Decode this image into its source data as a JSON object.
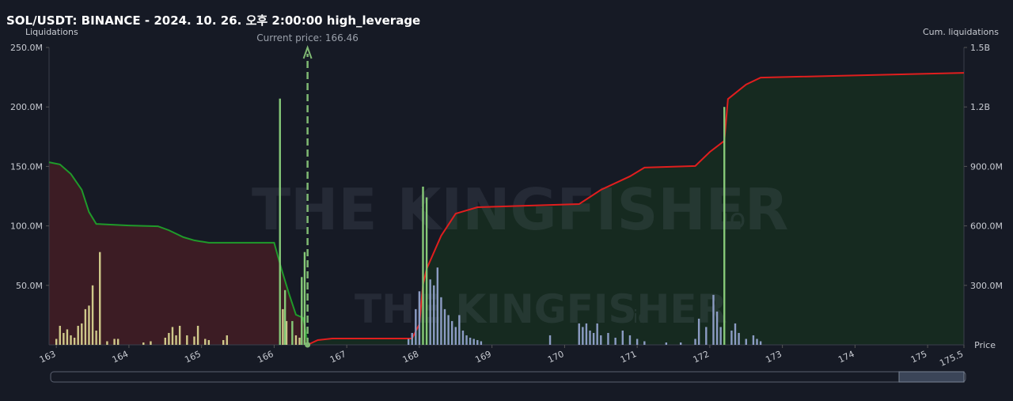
{
  "chart_data": {
    "type": "bar",
    "title": "SOL/USDT: BINANCE - 2024. 10. 26. 오후 2:00:00 high_leverage",
    "y_label": "Liquidations",
    "y2_label": "Cum. liquidations",
    "x_label": "Price",
    "watermark": "THE KINGFISHER",
    "watermark_suffix": "io",
    "current_price": {
      "value": 166.46,
      "label": "Current price: 166.46"
    },
    "xlim": [
      162.9,
      175.5
    ],
    "xticks": [
      163,
      164,
      165,
      166,
      167,
      168,
      169,
      170,
      171,
      172,
      173,
      174,
      175,
      175.5
    ],
    "ylim": [
      0,
      250000000
    ],
    "yticks": [
      {
        "value": 50000000,
        "label": "50.0M"
      },
      {
        "value": 100000000,
        "label": "100.0M"
      },
      {
        "value": 150000000,
        "label": "150.0M"
      },
      {
        "value": 200000000,
        "label": "200.0M"
      },
      {
        "value": 250000000,
        "label": "250.0M"
      }
    ],
    "y2lim": [
      0,
      1500000000
    ],
    "y2ticks": [
      {
        "value": 300000000,
        "label": "300.0M"
      },
      {
        "value": 600000000,
        "label": "600.0M"
      },
      {
        "value": 900000000,
        "label": "900.0M"
      },
      {
        "value": 1200000000,
        "label": "1.2B"
      },
      {
        "value": 1500000000,
        "label": "1.5B"
      }
    ],
    "series": [
      {
        "type": "bar",
        "color": "#cfc98a",
        "x": [
          163.0,
          163.05,
          163.1,
          163.15,
          163.2,
          163.25,
          163.3,
          163.35,
          163.4,
          163.45,
          163.5,
          163.55,
          163.6,
          163.7,
          163.8,
          163.85,
          164.2,
          164.3,
          164.5,
          164.55,
          164.6,
          164.65,
          164.7,
          164.8,
          164.9,
          164.95,
          165.05,
          165.1,
          165.3,
          165.35,
          166.12,
          166.17,
          166.3,
          166.35,
          166.42
        ],
        "values": [
          5000000,
          16000000,
          10000000,
          13000000,
          8000000,
          6000000,
          16000000,
          18000000,
          30000000,
          33000000,
          50000000,
          12000000,
          78000000,
          3000000,
          5000000,
          5000000,
          2000000,
          3000000,
          6000000,
          10000000,
          15000000,
          8000000,
          16000000,
          8000000,
          7000000,
          16000000,
          5000000,
          4000000,
          4000000,
          8000000,
          30000000,
          20000000,
          8000000,
          6000000,
          4000000
        ]
      },
      {
        "type": "bar",
        "color": "#8c9cc4",
        "x": [
          167.85,
          167.9,
          167.95,
          168.0,
          168.15,
          168.2,
          168.25,
          168.3,
          168.35,
          168.4,
          168.45,
          168.5,
          168.55,
          168.6,
          168.65,
          168.7,
          168.75,
          168.8,
          168.85,
          169.8,
          170.2,
          170.25,
          170.3,
          170.35,
          170.4,
          170.45,
          170.5,
          170.6,
          170.7,
          170.8,
          170.9,
          171.0,
          171.1,
          171.4,
          171.6,
          171.8,
          171.85,
          171.95,
          172.05,
          172.1,
          172.15,
          172.3,
          172.35,
          172.4,
          172.5,
          172.6,
          172.65,
          172.7
        ],
        "values": [
          5000000,
          10000000,
          30000000,
          45000000,
          55000000,
          50000000,
          65000000,
          40000000,
          30000000,
          25000000,
          20000000,
          15000000,
          25000000,
          12000000,
          8000000,
          6000000,
          5000000,
          4000000,
          3000000,
          8000000,
          18000000,
          15000000,
          18000000,
          12000000,
          10000000,
          18000000,
          8000000,
          10000000,
          6000000,
          12000000,
          8000000,
          5000000,
          3000000,
          2000000,
          2000000,
          5000000,
          22000000,
          15000000,
          42000000,
          28000000,
          15000000,
          12000000,
          18000000,
          10000000,
          5000000,
          8000000,
          5000000,
          3000000
        ]
      },
      {
        "type": "bar",
        "color": "#86c978",
        "x": [
          166.08,
          166.15,
          166.25,
          166.38,
          166.42,
          168.05,
          168.1,
          172.2
        ],
        "values": [
          207000000,
          46000000,
          20000000,
          57000000,
          78000000,
          133000000,
          124000000,
          200000000
        ]
      },
      {
        "type": "line",
        "axis": "y2",
        "color": "#1f9a2a",
        "area_color": "#4a1e24",
        "x": [
          162.9,
          163.05,
          163.2,
          163.35,
          163.45,
          163.55,
          164.0,
          164.4,
          164.55,
          164.75,
          164.9,
          165.1,
          166.0,
          166.1,
          166.2,
          166.3,
          166.4,
          166.45,
          166.46
        ],
        "values": [
          921000000,
          910000000,
          862000000,
          782000000,
          670000000,
          610000000,
          602000000,
          598000000,
          578000000,
          543000000,
          527000000,
          515000000,
          515000000,
          383000000,
          263000000,
          152000000,
          136000000,
          32000000,
          0
        ]
      },
      {
        "type": "line",
        "axis": "y2",
        "color": "#e01e1e",
        "area_color": "#17301f",
        "x": [
          166.46,
          166.6,
          166.8,
          167.9,
          168.0,
          168.05,
          168.1,
          168.3,
          168.5,
          168.8,
          169.5,
          170.2,
          170.5,
          170.9,
          171.1,
          171.8,
          172.0,
          172.2,
          172.25,
          172.5,
          172.7,
          175.5
        ],
        "values": [
          0,
          24000000,
          32000000,
          32000000,
          104000000,
          303000000,
          383000000,
          550000000,
          662000000,
          694000000,
          702000000,
          710000000,
          782000000,
          850000000,
          894000000,
          902000000,
          973000000,
          1029000000,
          1240000000,
          1313000000,
          1348000000,
          1372000000
        ]
      }
    ]
  }
}
